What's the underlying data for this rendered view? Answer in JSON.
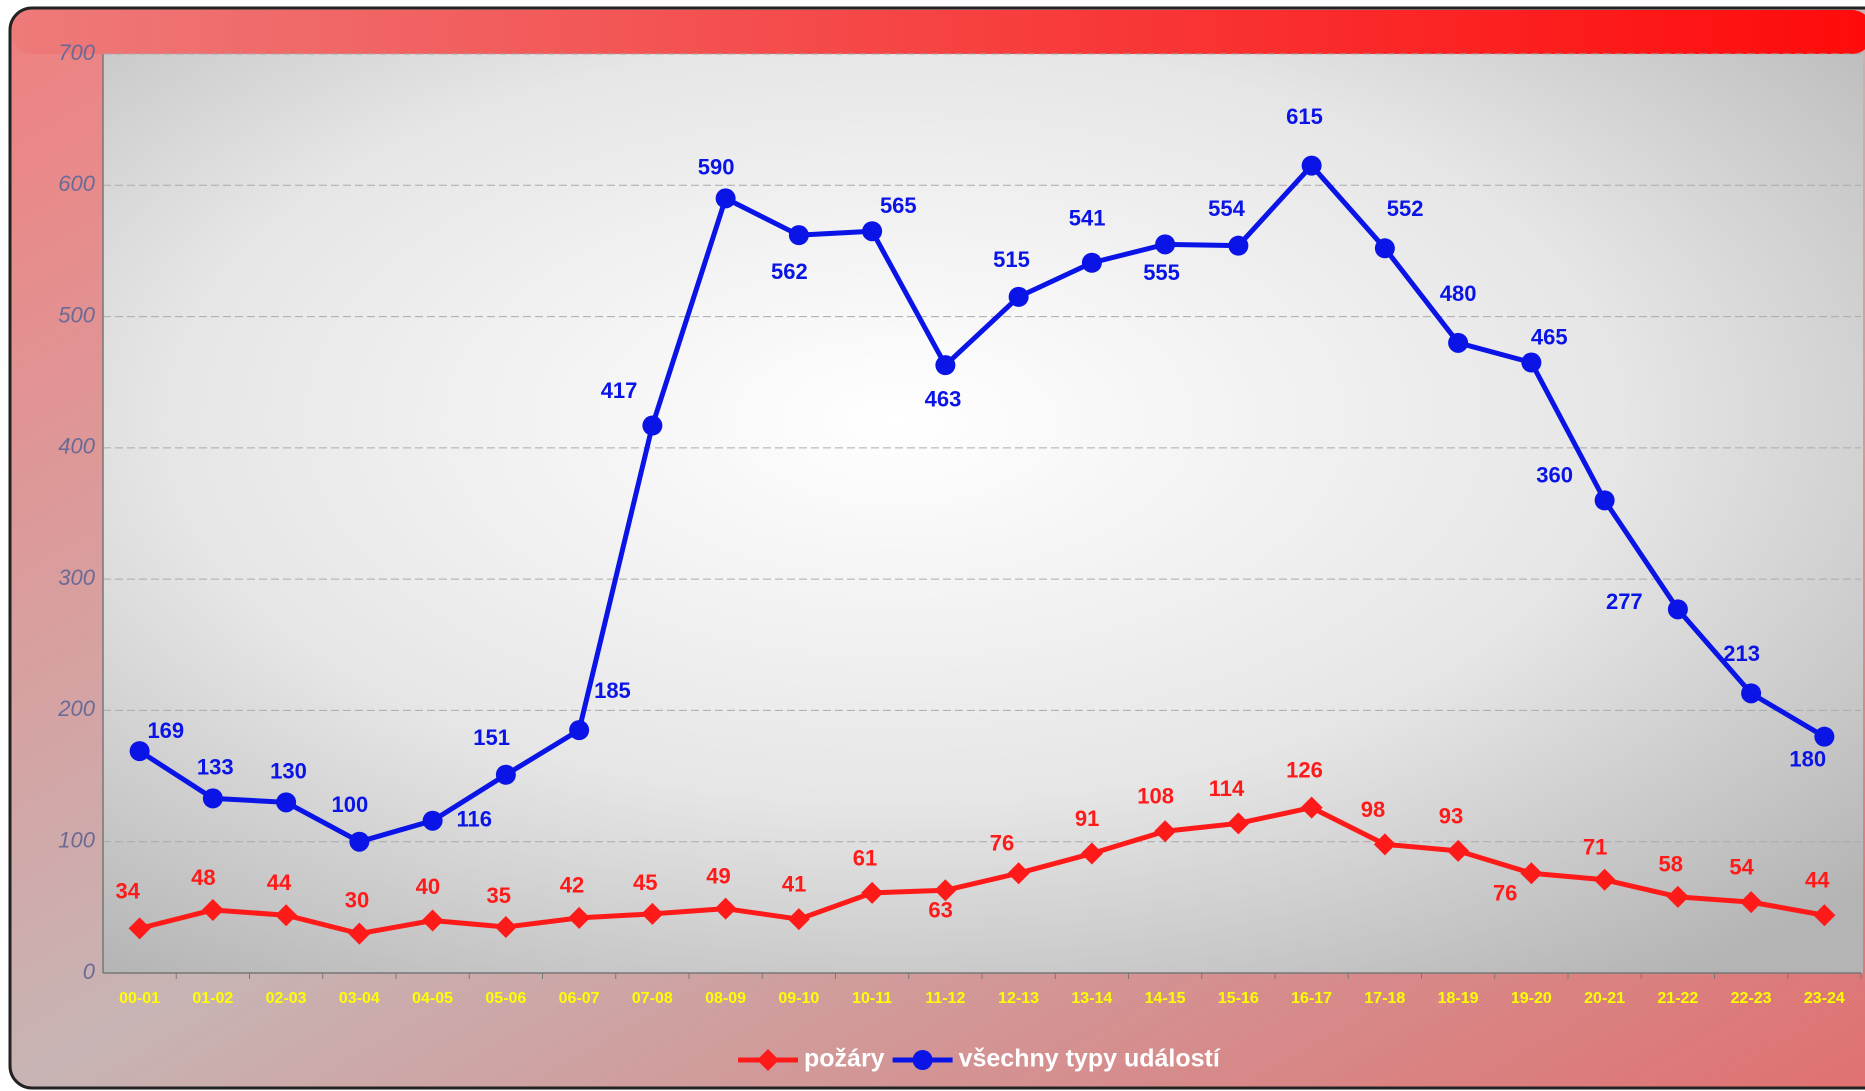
{
  "chart_data": {
    "type": "line",
    "categories": [
      "00-01",
      "01-02",
      "02-03",
      "03-04",
      "04-05",
      "05-06",
      "06-07",
      "07-08",
      "08-09",
      "09-10",
      "10-11",
      "11-12",
      "12-13",
      "13-14",
      "14-15",
      "15-16",
      "16-17",
      "17-18",
      "18-19",
      "19-20",
      "20-21",
      "21-22",
      "22-23",
      "23-24"
    ],
    "series": [
      {
        "name": "požáry",
        "color": "#ff1a1a",
        "marker": "diamond",
        "values": [
          34,
          48,
          44,
          30,
          40,
          35,
          42,
          45,
          49,
          41,
          61,
          63,
          76,
          91,
          108,
          114,
          126,
          98,
          93,
          76,
          71,
          58,
          54,
          44
        ]
      },
      {
        "name": "všechny typy událostí",
        "color": "#0a14e6",
        "marker": "circle",
        "values": [
          169,
          133,
          130,
          100,
          116,
          151,
          185,
          417,
          590,
          562,
          565,
          463,
          515,
          541,
          555,
          554,
          615,
          552,
          480,
          465,
          360,
          277,
          213,
          180
        ]
      }
    ],
    "ylim": [
      0,
      700
    ],
    "yticks": [
      0,
      100,
      200,
      300,
      400,
      500,
      600,
      700
    ],
    "grid": true,
    "legend": "bottom"
  }
}
